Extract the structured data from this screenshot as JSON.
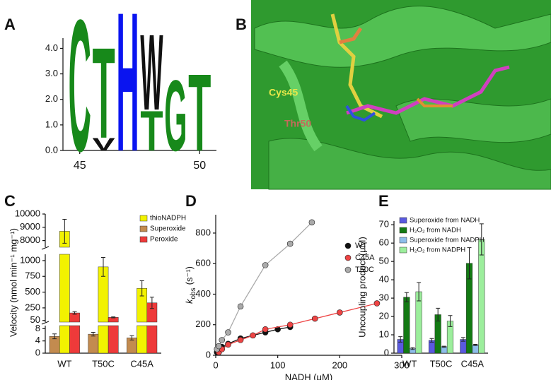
{
  "chart_data": [
    {
      "type": "logo",
      "panel_label": "A",
      "xlim": [
        44.3,
        50.7
      ],
      "xticks": [
        45,
        50
      ],
      "ylim": [
        0,
        4.4
      ],
      "yticks": [
        {
          "value": 0,
          "label": "0.0"
        },
        {
          "value": 1,
          "label": "1.0"
        },
        {
          "value": 2,
          "label": "2.0"
        },
        {
          "value": 3,
          "label": "3.0"
        },
        {
          "value": 4,
          "label": "4.0"
        }
      ],
      "stacks": [
        {
          "position": 45,
          "letters": [
            {
              "letter": "C",
              "height": 5.3,
              "color": "#17891a"
            }
          ]
        },
        {
          "position": 46,
          "letters": [
            {
              "letter": "V",
              "height": 0.5,
              "color": "#111111"
            },
            {
              "letter": "T",
              "height": 3.65,
              "color": "#17891a"
            }
          ]
        },
        {
          "position": 47,
          "letters": [
            {
              "letter": "H",
              "height": 5.6,
              "color": "#0a14f0"
            }
          ]
        },
        {
          "position": 48,
          "letters": [
            {
              "letter": "T",
              "height": 1.6,
              "color": "#17891a"
            },
            {
              "letter": "W",
              "height": 3.05,
              "color": "#111111"
            }
          ]
        },
        {
          "position": 49,
          "letters": [
            {
              "letter": "G",
              "height": 2.85,
              "color": "#17891a"
            }
          ]
        },
        {
          "position": 50,
          "letters": [
            {
              "letter": "T",
              "height": 3.1,
              "color": "#17891a"
            }
          ]
        }
      ]
    },
    {
      "type": "bar",
      "panel_label": "C",
      "ylabel": "Velocity (nmol min⁻¹ mg⁻¹)",
      "categories": [
        "WT",
        "T50C",
        "C45A"
      ],
      "y_segments": [
        {
          "ylim": [
            0,
            9
          ],
          "yticks": [
            0,
            4,
            8
          ]
        },
        {
          "ylim": [
            25,
            1100
          ],
          "yticks": [
            50,
            250,
            500,
            750,
            1000
          ]
        },
        {
          "ylim": [
            7500,
            10000
          ],
          "yticks": [
            8000,
            9000,
            10000
          ]
        }
      ],
      "series": [
        {
          "name": "thioNADPH",
          "color": "#f2f200",
          "values": [
            8700,
            900,
            560
          ],
          "errors": [
            900,
            150,
            120
          ]
        },
        {
          "name": "Superoxide",
          "color": "#c38b4f",
          "values": [
            5.5,
            6.2,
            5
          ],
          "errors": [
            0.8,
            0.6,
            0.7
          ]
        },
        {
          "name": "Peroxide",
          "color": "#ee3a3a",
          "values": [
            170,
            100,
            330
          ],
          "errors": [
            20,
            8,
            90
          ]
        }
      ]
    },
    {
      "type": "scatter",
      "panel_label": "D",
      "xlabel": "NADH (μM)",
      "ylabel": "k",
      "ylabel_sub": "obs",
      "ylabel_unit": "(s⁻¹)",
      "xlim": [
        0,
        300
      ],
      "xticks": [
        0,
        100,
        200,
        300
      ],
      "ylim": [
        0,
        920
      ],
      "yticks": [
        0,
        200,
        400,
        600,
        800
      ],
      "series": [
        {
          "name": "WT",
          "color": "#111111",
          "x": [
            2,
            5,
            10,
            20,
            40,
            60,
            80,
            100,
            120
          ],
          "values": [
            20,
            35,
            55,
            75,
            110,
            130,
            150,
            170,
            185
          ]
        },
        {
          "name": "C45A",
          "color": "#ee4444",
          "x": [
            5,
            10,
            20,
            40,
            60,
            80,
            120,
            160,
            200,
            260
          ],
          "values": [
            20,
            40,
            70,
            100,
            130,
            170,
            200,
            240,
            280,
            340
          ]
        },
        {
          "name": "T50C",
          "color": "#aaaaaa",
          "x": [
            2,
            5,
            10,
            20,
            40,
            80,
            120,
            155
          ],
          "values": [
            40,
            60,
            100,
            150,
            320,
            590,
            730,
            870
          ]
        }
      ]
    },
    {
      "type": "bar",
      "panel_label": "E",
      "ylabel": "Uncoupling product (μM)",
      "categories": [
        "WT",
        "T50C",
        "C45A"
      ],
      "ylim": [
        0,
        72
      ],
      "yticks": [
        0,
        10,
        20,
        30,
        40,
        50,
        60,
        70
      ],
      "series": [
        {
          "name": "Superoxide from NADH",
          "color": "#5a5ae0",
          "values": [
            7.5,
            7,
            7.5
          ],
          "errors": [
            1.5,
            1,
            1
          ]
        },
        {
          "name": "H₂O₂ from NADH",
          "color": "#137a13",
          "values": [
            30.5,
            21,
            49
          ],
          "errors": [
            2.5,
            3.5,
            8.5
          ]
        },
        {
          "name": "Superoxide from NADPH",
          "color": "#8ebeea",
          "values": [
            2.5,
            3.5,
            4.5
          ],
          "errors": [
            0.5,
            0.3,
            0.3
          ]
        },
        {
          "name": "H₂O₂ from NADPH",
          "color": "#9cee9c",
          "values": [
            33.5,
            17.5,
            62
          ],
          "errors": [
            5,
            3,
            8.5
          ]
        }
      ]
    }
  ],
  "panel_b": {
    "panel_label": "B",
    "labels": [
      "Cys45",
      "Thr50"
    ]
  }
}
